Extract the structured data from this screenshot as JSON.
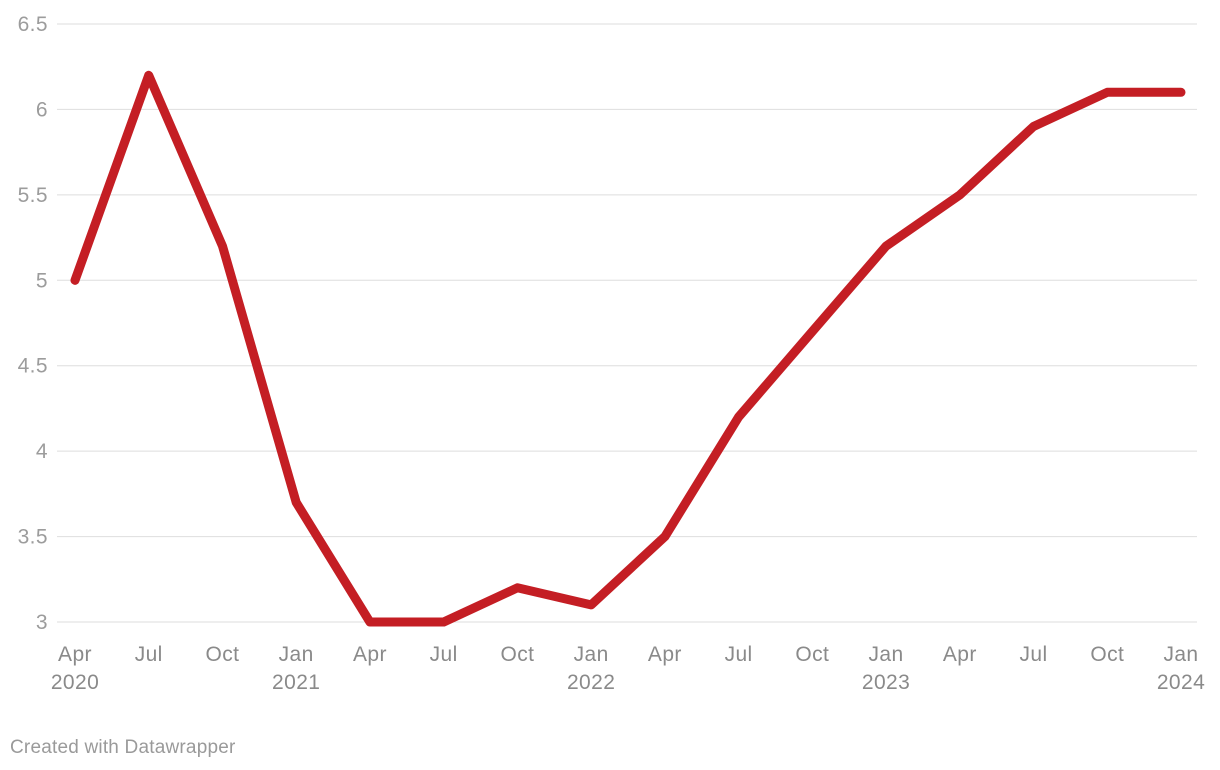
{
  "chart_data": {
    "type": "line",
    "title": "",
    "xlabel": "",
    "ylabel": "",
    "x": [
      "Apr 2020",
      "Jul 2020",
      "Oct 2020",
      "Jan 2021",
      "Apr 2021",
      "Jul 2021",
      "Oct 2021",
      "Jan 2022",
      "Apr 2022",
      "Jul 2022",
      "Oct 2022",
      "Jan 2023",
      "Apr 2023",
      "Jul 2023",
      "Oct 2023",
      "Jan 2024"
    ],
    "values": [
      5.0,
      6.2,
      5.2,
      3.7,
      3.0,
      3.0,
      3.2,
      3.1,
      3.5,
      4.2,
      4.7,
      5.2,
      5.5,
      5.9,
      6.1,
      6.1
    ],
    "x_ticks": [
      {
        "month": "Apr",
        "year": "2020"
      },
      {
        "month": "Jul",
        "year": ""
      },
      {
        "month": "Oct",
        "year": ""
      },
      {
        "month": "Jan",
        "year": "2021"
      },
      {
        "month": "Apr",
        "year": ""
      },
      {
        "month": "Jul",
        "year": ""
      },
      {
        "month": "Oct",
        "year": ""
      },
      {
        "month": "Jan",
        "year": "2022"
      },
      {
        "month": "Apr",
        "year": ""
      },
      {
        "month": "Jul",
        "year": ""
      },
      {
        "month": "Oct",
        "year": ""
      },
      {
        "month": "Jan",
        "year": "2023"
      },
      {
        "month": "Apr",
        "year": ""
      },
      {
        "month": "Jul",
        "year": ""
      },
      {
        "month": "Oct",
        "year": ""
      },
      {
        "month": "Jan",
        "year": "2024"
      }
    ],
    "y_ticks": [
      "3",
      "3.5",
      "4",
      "4.5",
      "5",
      "5.5",
      "6",
      "6.5"
    ],
    "ylim": [
      3,
      6.5
    ],
    "grid": true,
    "legend_position": "none",
    "line_color": "#c41e24",
    "grid_color": "#dedede",
    "y_tick_color": "#9c9c9c",
    "x_tick_color": "#8a8a8a"
  },
  "footer": {
    "credit": "Created with Datawrapper"
  }
}
